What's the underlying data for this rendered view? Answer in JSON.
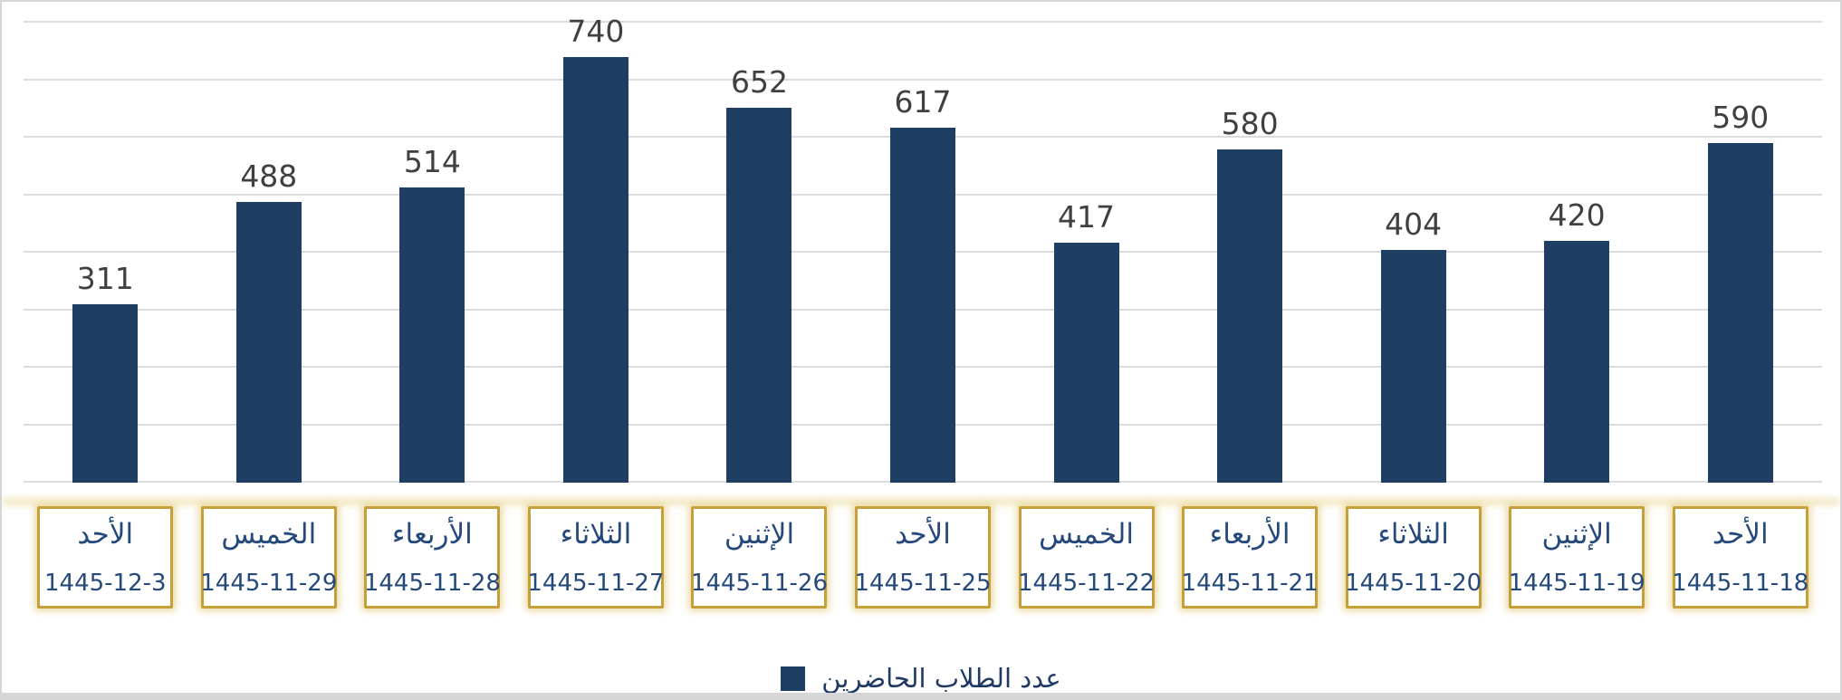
{
  "chart_data": {
    "type": "bar",
    "title": "",
    "legend_label": "عدد الطلاب الحاضرين",
    "legend_position": "bottom",
    "categories": [
      {
        "day": "الأحد",
        "date": "1445-12-3"
      },
      {
        "day": "الخميس",
        "date": "1445-11-29"
      },
      {
        "day": "الأربعاء",
        "date": "1445-11-28"
      },
      {
        "day": "الثلاثاء",
        "date": "1445-11-27"
      },
      {
        "day": "الإثنين",
        "date": "1445-11-26"
      },
      {
        "day": "الأحد",
        "date": "1445-11-25"
      },
      {
        "day": "الخميس",
        "date": "1445-11-22"
      },
      {
        "day": "الأربعاء",
        "date": "1445-11-21"
      },
      {
        "day": "الثلاثاء",
        "date": "1445-11-20"
      },
      {
        "day": "الإثنين",
        "date": "1445-11-19"
      },
      {
        "day": "الأحد",
        "date": "1445-11-18"
      }
    ],
    "values": [
      311,
      488,
      514,
      740,
      652,
      617,
      417,
      580,
      404,
      420,
      590
    ],
    "xlabel": "",
    "ylabel": "",
    "ylim": [
      0,
      800
    ],
    "grid_step": 100,
    "grid": true,
    "colors": {
      "bar": "#1f3e64",
      "value_label": "#404040",
      "gridline": "#dcdcdc",
      "category_box_border": "#c5a03a",
      "category_text": "#25497b",
      "legend_text": "#1f3864"
    }
  }
}
